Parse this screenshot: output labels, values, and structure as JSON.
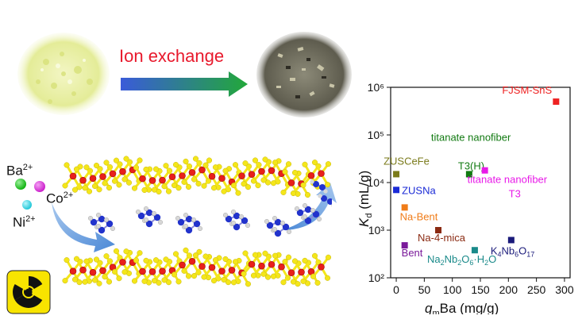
{
  "header": {
    "ion_exchange_label": "Ion exchange"
  },
  "ions": [
    {
      "symbol": "Ba",
      "charge": "2+",
      "color": "#12b312"
    },
    {
      "symbol": "Co",
      "charge": "2+",
      "color": "#cc22cc"
    },
    {
      "symbol": "Ni",
      "charge": "2+",
      "color": "#22c8d8"
    }
  ],
  "colors": {
    "sulfur": "#f4e61a",
    "metal": "#e8201a",
    "nitrogen": "#2233cc",
    "hydrogen": "#d8d8d8",
    "arrow_start": "#3a5bd9",
    "arrow_end": "#22a83a"
  },
  "chart_data": {
    "type": "scatter",
    "xlabel": "q_m Ba (mg/g)",
    "ylabel": "K_d (mL/g)",
    "xlim": [
      -10,
      310
    ],
    "ylim_log10": [
      2,
      6
    ],
    "x_ticks": [
      "0",
      "50",
      "100",
      "150",
      "200",
      "250",
      "300"
    ],
    "y_ticks": [
      "10²",
      "10³",
      "10⁴",
      "10⁵",
      "10⁶"
    ],
    "points": [
      {
        "label": "FJSM-SnS",
        "x": 285,
        "y": 500000,
        "color": "#ee2222"
      },
      {
        "label": "titanate nanofiber T3(H)",
        "x": 130,
        "y": 15000,
        "color": "#127a12"
      },
      {
        "label": "ZUSCeFe",
        "x": 0,
        "y": 15000,
        "color": "#7a7a1a"
      },
      {
        "label": "ZUSNa",
        "x": 0,
        "y": 7000,
        "color": "#1a2ad6"
      },
      {
        "label": "titanate nanofiber T3",
        "x": 158,
        "y": 18000,
        "color": "#e81ae8"
      },
      {
        "label": "Na-Bent",
        "x": 15,
        "y": 3000,
        "color": "#f07c18"
      },
      {
        "label": "Na-4-mica",
        "x": 75,
        "y": 1000,
        "color": "#8a2a12"
      },
      {
        "label": "Bent",
        "x": 15,
        "y": 480,
        "color": "#7a1a9a"
      },
      {
        "label": "Na2Nb2O6·H2O",
        "x": 140,
        "y": 380,
        "color": "#1a8a8a"
      },
      {
        "label": "K4Nb6O17",
        "x": 205,
        "y": 620,
        "color": "#1a1a7a"
      }
    ]
  }
}
